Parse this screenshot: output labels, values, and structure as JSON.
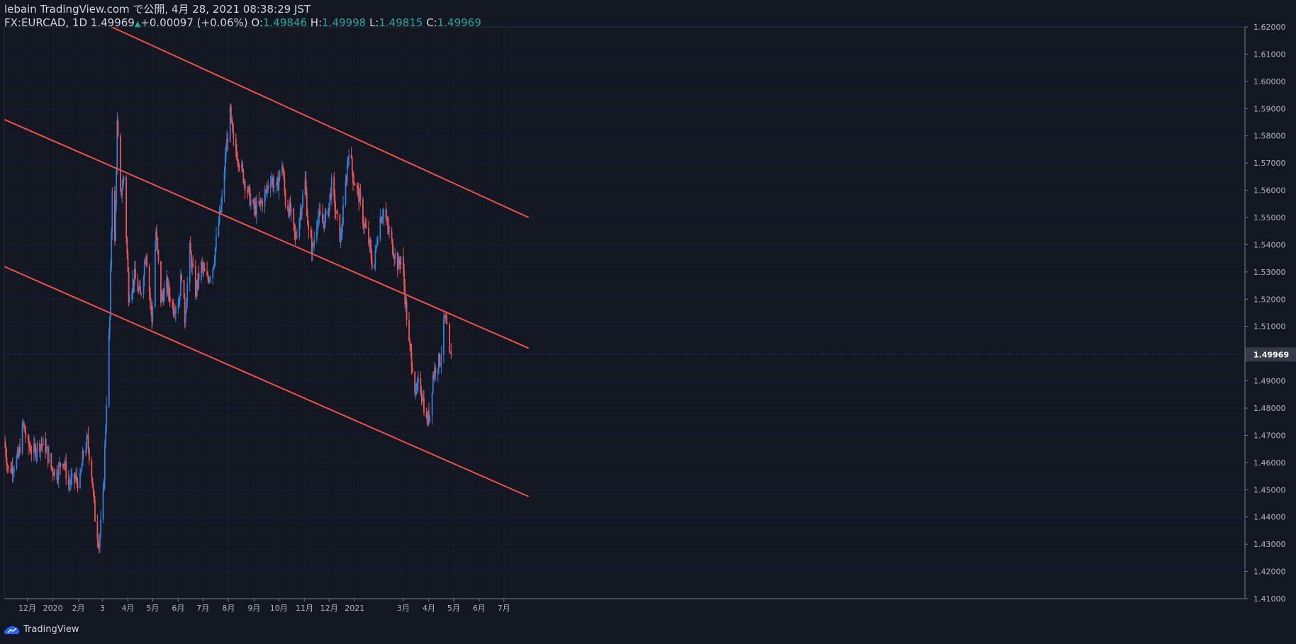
{
  "header": {
    "line1": "lebain TradingView.com で公開, 4月 28, 2021 08:38:29 JST",
    "symbol": "FX:EURCAD, 1D",
    "price": "1.49969",
    "change": "+0.00097 (+0.06%)",
    "o_label": "O:",
    "o_value": "1.49846",
    "h_label": "H:",
    "h_value": "1.49998",
    "l_label": "L:",
    "l_value": "1.49815",
    "c_label": "C:",
    "c_value": "1.49969"
  },
  "footer": {
    "brand": "TradingView"
  },
  "colors": {
    "background": "#131722",
    "up": "#2f7fd8",
    "down": "#ef5350",
    "trendline": "#f0504a",
    "ohlc_value": "#26a69a"
  },
  "chart_data": {
    "type": "candlestick",
    "symbol": "FX:EURCAD",
    "interval": "1D",
    "ylim": [
      1.41,
      1.62
    ],
    "y_ticks": [
      "1.62000",
      "1.61000",
      "1.60000",
      "1.59000",
      "1.58000",
      "1.57000",
      "1.56000",
      "1.55000",
      "1.54000",
      "1.53000",
      "1.52000",
      "1.51000",
      "1.50000",
      "1.49000",
      "1.48000",
      "1.47000",
      "1.46000",
      "1.45000",
      "1.44000",
      "1.43000",
      "1.42000",
      "1.41000"
    ],
    "x_ticks": [
      "12月",
      "2020",
      "2月",
      "3",
      "4月",
      "5月",
      "6月",
      "7月",
      "8月",
      "9月",
      "10月",
      "11月",
      "12月",
      "2021",
      "3月",
      "4月",
      "5月",
      "6月",
      "7月"
    ],
    "last_price": "1.49969",
    "trendlines": [
      {
        "name": "upper channel",
        "from": [
          "2020-03-12",
          1.62
        ],
        "to": [
          "2021-07-31",
          1.55
        ]
      },
      {
        "name": "middle channel",
        "from": [
          "2019-11-03",
          1.586
        ],
        "to": [
          "2021-07-31",
          1.502
        ]
      },
      {
        "name": "lower channel",
        "from": [
          "2019-11-03",
          1.532
        ],
        "to": [
          "2021-07-31",
          1.4475
        ]
      }
    ],
    "price_path": [
      [
        "2019-11-03",
        1.468
      ],
      [
        "2019-11-08",
        1.457
      ],
      [
        "2019-11-14",
        1.459
      ],
      [
        "2019-11-20",
        1.462
      ],
      [
        "2019-11-26",
        1.474
      ],
      [
        "2019-12-02",
        1.466
      ],
      [
        "2019-12-09",
        1.464
      ],
      [
        "2019-12-16",
        1.467
      ],
      [
        "2019-12-23",
        1.466
      ],
      [
        "2019-12-30",
        1.458
      ],
      [
        "2020-01-06",
        1.456
      ],
      [
        "2020-01-13",
        1.462
      ],
      [
        "2020-01-20",
        1.452
      ],
      [
        "2020-01-27",
        1.454
      ],
      [
        "2020-02-03",
        1.453
      ],
      [
        "2020-02-07",
        1.464
      ],
      [
        "2020-02-12",
        1.468
      ],
      [
        "2020-02-17",
        1.456
      ],
      [
        "2020-02-21",
        1.44
      ],
      [
        "2020-02-26",
        1.43
      ],
      [
        "2020-03-02",
        1.447
      ],
      [
        "2020-03-06",
        1.483
      ],
      [
        "2020-03-10",
        1.513
      ],
      [
        "2020-03-13",
        1.562
      ],
      [
        "2020-03-16",
        1.54
      ],
      [
        "2020-03-19",
        1.584
      ],
      [
        "2020-03-23",
        1.558
      ],
      [
        "2020-03-27",
        1.565
      ],
      [
        "2020-04-02",
        1.522
      ],
      [
        "2020-04-09",
        1.528
      ],
      [
        "2020-04-16",
        1.521
      ],
      [
        "2020-04-23",
        1.538
      ],
      [
        "2020-04-30",
        1.512
      ],
      [
        "2020-05-05",
        1.545
      ],
      [
        "2020-05-11",
        1.52
      ],
      [
        "2020-05-18",
        1.525
      ],
      [
        "2020-05-26",
        1.517
      ],
      [
        "2020-06-02",
        1.52
      ],
      [
        "2020-06-05",
        1.53
      ],
      [
        "2020-06-09",
        1.513
      ],
      [
        "2020-06-15",
        1.538
      ],
      [
        "2020-06-22",
        1.523
      ],
      [
        "2020-06-29",
        1.532
      ],
      [
        "2020-07-06",
        1.527
      ],
      [
        "2020-07-13",
        1.532
      ],
      [
        "2020-07-20",
        1.548
      ],
      [
        "2020-07-24",
        1.556
      ],
      [
        "2020-07-29",
        1.575
      ],
      [
        "2020-08-03",
        1.588
      ],
      [
        "2020-08-07",
        1.577
      ],
      [
        "2020-08-12",
        1.573
      ],
      [
        "2020-08-18",
        1.566
      ],
      [
        "2020-08-24",
        1.56
      ],
      [
        "2020-08-31",
        1.553
      ],
      [
        "2020-09-07",
        1.554
      ],
      [
        "2020-09-14",
        1.558
      ],
      [
        "2020-09-21",
        1.565
      ],
      [
        "2020-09-28",
        1.56
      ],
      [
        "2020-10-05",
        1.57
      ],
      [
        "2020-10-09",
        1.556
      ],
      [
        "2020-10-15",
        1.552
      ],
      [
        "2020-10-21",
        1.542
      ],
      [
        "2020-10-27",
        1.552
      ],
      [
        "2020-11-02",
        1.563
      ],
      [
        "2020-11-06",
        1.544
      ],
      [
        "2020-11-11",
        1.538
      ],
      [
        "2020-11-17",
        1.551
      ],
      [
        "2020-11-23",
        1.548
      ],
      [
        "2020-11-29",
        1.551
      ],
      [
        "2020-12-04",
        1.562
      ],
      [
        "2020-12-09",
        1.552
      ],
      [
        "2020-12-15",
        1.542
      ],
      [
        "2020-12-21",
        1.562
      ],
      [
        "2020-12-25",
        1.576
      ],
      [
        "2020-12-30",
        1.565
      ],
      [
        "2021-01-06",
        1.558
      ],
      [
        "2021-01-12",
        1.548
      ],
      [
        "2021-01-18",
        1.541
      ],
      [
        "2021-01-24",
        1.53
      ],
      [
        "2021-01-30",
        1.548
      ],
      [
        "2021-02-05",
        1.553
      ],
      [
        "2021-02-11",
        1.545
      ],
      [
        "2021-02-17",
        1.538
      ],
      [
        "2021-02-23",
        1.532
      ],
      [
        "2021-02-27",
        1.537
      ],
      [
        "2021-03-03",
        1.521
      ],
      [
        "2021-03-08",
        1.503
      ],
      [
        "2021-03-12",
        1.496
      ],
      [
        "2021-03-16",
        1.484
      ],
      [
        "2021-03-20",
        1.49
      ],
      [
        "2021-03-24",
        1.485
      ],
      [
        "2021-03-29",
        1.475
      ],
      [
        "2021-04-02",
        1.478
      ],
      [
        "2021-04-06",
        1.492
      ],
      [
        "2021-04-10",
        1.496
      ],
      [
        "2021-04-15",
        1.498
      ],
      [
        "2021-04-20",
        1.513
      ],
      [
        "2021-04-23",
        1.508
      ],
      [
        "2021-04-26",
        1.4985
      ],
      [
        "2021-04-28",
        1.49969
      ]
    ]
  }
}
